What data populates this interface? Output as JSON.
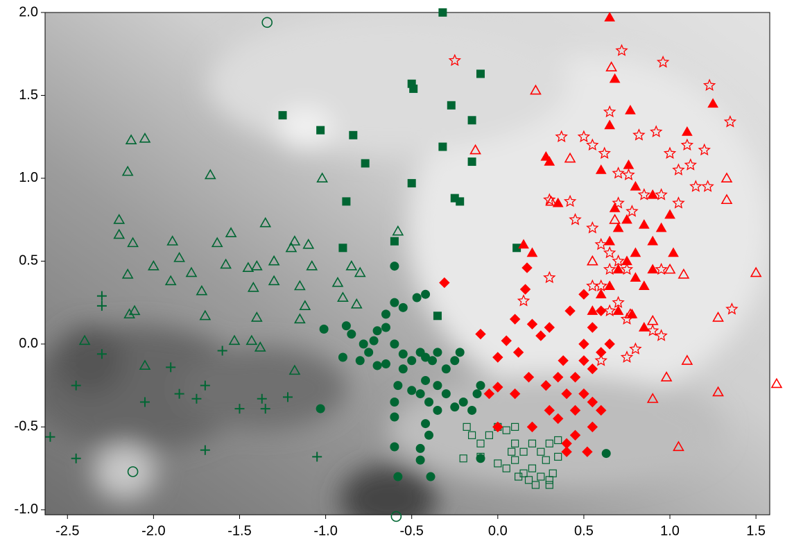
{
  "chart_data": {
    "type": "scatter",
    "xlim": [
      -2.63,
      1.58
    ],
    "ylim": [
      -1.03,
      2.0
    ],
    "xticks": [
      -2.5,
      {
        "value": -2.0,
        "label": "-2.0"
      },
      -1.5,
      {
        "value": -1.0,
        "label": "-1.0"
      },
      -0.5,
      {
        "value": 0.0,
        "label": "0.0"
      },
      0.5,
      {
        "value": 1.0,
        "label": "1.0"
      },
      1.5
    ],
    "yticks": [
      {
        "value": -1.0,
        "label": "-1.0"
      },
      -0.5,
      {
        "value": 0.0,
        "label": "0.0"
      },
      0.5,
      {
        "value": 1.0,
        "label": "1.0"
      },
      1.5,
      {
        "value": 2.0,
        "label": "2.0"
      }
    ],
    "series": [
      {
        "marker": "triangle-open",
        "color": "#006633",
        "x": [
          -2.13,
          -2.05,
          -2.15,
          -1.67,
          -2.2,
          -2.2,
          -2.12,
          -1.89,
          -1.85,
          -2.0,
          -2.15,
          -1.9,
          -1.78,
          -1.72,
          -1.63,
          -1.55,
          -1.58,
          -1.35,
          -1.45,
          -1.4,
          -1.3,
          -1.2,
          -1.18,
          -1.1,
          -1.08,
          -0.85,
          -0.8,
          -0.93,
          -0.9,
          -0.82,
          -1.15,
          -1.12,
          -1.42,
          -1.4,
          -1.7,
          -2.14,
          -2.11,
          -2.4,
          -2.05,
          -1.53,
          -1.43,
          -1.38,
          -1.18,
          -1.02,
          -0.58,
          -1.15,
          -1.3
        ],
        "y": [
          1.23,
          1.24,
          1.04,
          1.02,
          0.75,
          0.66,
          0.61,
          0.62,
          0.52,
          0.47,
          0.42,
          0.38,
          0.43,
          0.32,
          0.61,
          0.67,
          0.48,
          0.73,
          0.46,
          0.47,
          0.5,
          0.58,
          0.62,
          0.6,
          0.47,
          0.47,
          0.43,
          0.37,
          0.28,
          0.24,
          0.35,
          0.23,
          0.34,
          0.16,
          0.17,
          0.18,
          0.2,
          0.02,
          -0.13,
          0.02,
          0.02,
          -0.02,
          -0.16,
          1.0,
          0.68,
          0.15,
          0.38
        ]
      },
      {
        "marker": "plus",
        "color": "#006633",
        "x": [
          -2.3,
          -2.3,
          -2.3,
          -2.45,
          -2.05,
          -1.9,
          -1.85,
          -1.75,
          -1.7,
          -1.6,
          -1.5,
          -1.37,
          -1.35,
          -1.22,
          -1.05,
          -1.7,
          -2.45,
          -2.6
        ],
        "y": [
          0.29,
          0.23,
          -0.06,
          -0.25,
          -0.35,
          -0.14,
          -0.3,
          -0.33,
          -0.25,
          -0.04,
          -0.39,
          -0.33,
          -0.39,
          -0.32,
          -0.68,
          -0.64,
          -0.69,
          -0.56
        ]
      },
      {
        "marker": "circle-open",
        "color": "#006633",
        "x": [
          -1.34,
          -2.12,
          -0.59
        ],
        "y": [
          1.94,
          -0.77,
          -1.04
        ]
      },
      {
        "marker": "square",
        "color": "#006633",
        "x": [
          -0.32,
          -0.5,
          -0.49,
          -0.1,
          -0.27,
          -1.25,
          -0.15,
          -1.03,
          -0.84,
          -0.32,
          -0.15,
          -0.77,
          -0.5,
          -0.25,
          -0.22,
          -0.88,
          -0.6,
          -0.9,
          0.11,
          -0.35
        ],
        "y": [
          2.0,
          1.57,
          1.54,
          1.63,
          1.44,
          1.38,
          1.35,
          1.29,
          1.26,
          1.19,
          1.1,
          1.09,
          0.97,
          0.88,
          0.86,
          0.86,
          0.62,
          0.58,
          0.58,
          0.17
        ]
      },
      {
        "marker": "circle",
        "color": "#006633",
        "x": [
          -0.6,
          -0.42,
          -0.47,
          -0.55,
          -0.6,
          -0.65,
          -1.01,
          -0.88,
          -0.85,
          -0.78,
          -0.75,
          -0.72,
          -0.7,
          -0.65,
          -0.6,
          -0.55,
          -0.5,
          -0.45,
          -0.42,
          -0.38,
          -0.35,
          -0.3,
          -0.25,
          -0.22,
          -0.9,
          -0.8,
          -0.7,
          -0.65,
          -0.55,
          -0.42,
          -0.35,
          -0.3,
          -0.4,
          -0.45,
          -0.5,
          -0.58,
          -0.6,
          -0.35,
          -0.25,
          -0.2,
          -0.12,
          -0.1,
          -0.15,
          -0.42,
          -0.6,
          -0.4,
          -1.03,
          -0.45,
          -0.6,
          -0.45,
          -0.58,
          -0.39,
          -0.1,
          0.63
        ],
        "y": [
          0.47,
          0.3,
          0.28,
          0.22,
          0.25,
          0.18,
          0.09,
          0.11,
          0.06,
          0.0,
          -0.05,
          0.02,
          0.08,
          0.1,
          0.0,
          -0.06,
          -0.1,
          -0.05,
          -0.08,
          -0.1,
          -0.05,
          -0.15,
          -0.1,
          -0.05,
          -0.08,
          -0.1,
          -0.13,
          -0.12,
          -0.15,
          -0.22,
          -0.25,
          -0.3,
          -0.35,
          -0.3,
          -0.28,
          -0.25,
          -0.35,
          -0.4,
          -0.38,
          -0.35,
          -0.3,
          -0.25,
          -0.4,
          -0.48,
          -0.44,
          -0.55,
          -0.39,
          -0.63,
          -0.62,
          -0.7,
          -0.8,
          -0.8,
          -0.69,
          -0.66
        ]
      },
      {
        "marker": "square-open",
        "color": "#006633",
        "x": [
          -0.18,
          -0.15,
          -0.1,
          -0.05,
          0.0,
          0.05,
          0.1,
          0.1,
          0.15,
          0.2,
          0.25,
          0.3,
          0.35,
          -0.2,
          0.0,
          0.05,
          0.1,
          0.15,
          0.2,
          0.25,
          0.3,
          0.32,
          0.28,
          0.22,
          0.3,
          0.18,
          0.12,
          -0.1,
          0.35,
          0.08
        ],
        "y": [
          -0.5,
          -0.55,
          -0.6,
          -0.55,
          -0.5,
          -0.52,
          -0.5,
          -0.6,
          -0.65,
          -0.6,
          -0.65,
          -0.6,
          -0.58,
          -0.69,
          -0.72,
          -0.75,
          -0.7,
          -0.78,
          -0.75,
          -0.8,
          -0.82,
          -0.78,
          -0.7,
          -0.85,
          -0.85,
          -0.82,
          -0.8,
          -0.68,
          -0.68,
          -0.65
        ]
      },
      {
        "marker": "diamond",
        "color": "#ff0000",
        "x": [
          -0.31,
          0.16,
          0.17,
          -0.1,
          0.0,
          0.05,
          0.1,
          0.2,
          0.12,
          0.25,
          0.3,
          0.18,
          0.28,
          0.0,
          0.1,
          -0.05,
          0.0,
          0.2,
          0.3,
          0.35,
          0.4,
          0.45,
          0.5,
          0.5,
          0.55,
          0.45,
          0.5,
          0.55,
          0.6,
          0.45,
          0.4,
          0.52,
          0.6,
          0.55,
          0.6,
          0.5,
          0.65,
          0.42,
          0.38,
          0.35,
          0.55,
          0.4
        ],
        "y": [
          0.37,
          0.33,
          0.46,
          0.06,
          -0.08,
          0.02,
          0.15,
          0.12,
          -0.05,
          0.05,
          0.1,
          -0.2,
          -0.25,
          -0.26,
          -0.3,
          -0.3,
          -0.5,
          -0.5,
          -0.4,
          -0.45,
          -0.3,
          -0.2,
          -0.1,
          0.0,
          -0.15,
          -0.4,
          -0.3,
          -0.35,
          -0.4,
          -0.55,
          -0.6,
          -0.65,
          -0.05,
          0.1,
          0.2,
          0.3,
          0.0,
          0.2,
          -0.1,
          -0.2,
          -0.5,
          -0.65
        ]
      },
      {
        "marker": "triangle",
        "color": "#ff0000",
        "x": [
          0.65,
          0.68,
          0.77,
          0.65,
          0.28,
          0.3,
          0.6,
          0.8,
          0.9,
          1.0,
          0.85,
          0.95,
          0.75,
          0.7,
          0.65,
          0.9,
          1.02,
          0.8,
          0.75,
          0.7,
          0.8,
          0.85,
          0.9,
          0.65,
          0.6,
          0.55,
          0.7,
          0.78,
          0.85,
          0.35,
          0.15,
          0.2,
          1.1,
          1.25,
          0.76,
          0.68
        ],
        "y": [
          1.97,
          1.6,
          1.41,
          1.32,
          1.13,
          1.1,
          1.05,
          0.95,
          0.9,
          0.78,
          0.72,
          0.7,
          0.75,
          0.7,
          0.62,
          0.62,
          0.55,
          0.55,
          0.5,
          0.45,
          0.4,
          0.35,
          0.45,
          0.35,
          0.3,
          0.2,
          0.2,
          0.18,
          0.1,
          0.85,
          0.6,
          0.55,
          1.28,
          1.45,
          1.08,
          0.82
        ]
      },
      {
        "marker": "triangle-open",
        "color": "#ff0000",
        "x": [
          0.22,
          -0.13,
          0.66,
          0.42,
          0.31,
          1.33,
          1.33,
          0.68,
          0.55,
          1.0,
          1.08,
          1.5,
          1.28,
          1.1,
          0.98,
          0.9,
          1.28,
          1.62,
          1.05,
          0.9,
          0.77
        ],
        "y": [
          1.53,
          1.17,
          1.67,
          1.12,
          0.86,
          0.87,
          1.0,
          0.75,
          0.5,
          0.45,
          0.42,
          0.43,
          0.16,
          -0.1,
          -0.2,
          -0.33,
          -0.29,
          -0.24,
          -0.62,
          0.14,
          0.18
        ]
      },
      {
        "marker": "star-open",
        "color": "#ff0000",
        "x": [
          -0.25,
          0.72,
          0.96,
          1.35,
          1.23,
          0.37,
          0.5,
          0.55,
          0.62,
          0.65,
          0.82,
          0.92,
          1.0,
          1.1,
          1.2,
          0.7,
          0.76,
          1.05,
          1.12,
          1.15,
          1.22,
          0.95,
          1.05,
          0.7,
          0.78,
          0.85,
          0.42,
          0.45,
          0.3,
          0.55,
          0.6,
          0.65,
          0.7,
          0.75,
          0.65,
          0.55,
          0.6,
          0.95,
          0.3,
          0.15,
          0.7,
          0.75,
          0.65,
          0.9,
          0.95,
          0.6,
          0.75,
          0.8,
          1.36
        ],
        "y": [
          1.71,
          1.77,
          1.7,
          1.34,
          1.56,
          1.25,
          1.25,
          1.2,
          1.15,
          1.4,
          1.26,
          1.28,
          1.15,
          1.2,
          1.17,
          1.03,
          1.02,
          1.05,
          1.08,
          0.95,
          0.95,
          0.9,
          0.85,
          0.85,
          0.8,
          0.9,
          0.86,
          0.75,
          0.87,
          0.7,
          0.6,
          0.55,
          0.5,
          0.45,
          0.45,
          0.35,
          0.35,
          0.45,
          0.4,
          0.26,
          0.25,
          0.15,
          0.2,
          0.08,
          0.05,
          -0.1,
          -0.08,
          -0.03,
          0.21
        ]
      }
    ]
  }
}
